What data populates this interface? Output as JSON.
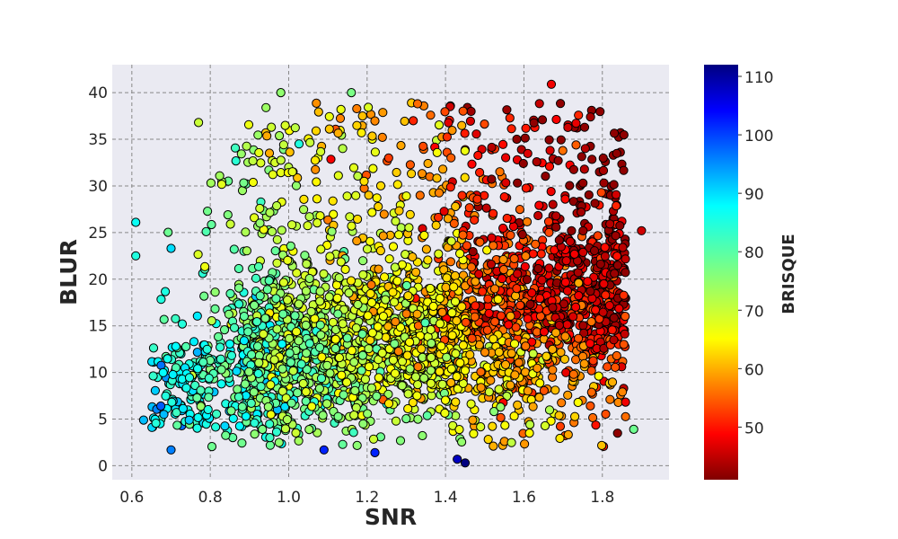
{
  "chart_data": {
    "type": "scatter",
    "title": "",
    "xlabel": "SNR",
    "ylabel": "BLUR",
    "xlim": [
      0.55,
      1.97
    ],
    "ylim": [
      -1.5,
      43
    ],
    "xticks": [
      0.6,
      0.8,
      1.0,
      1.2,
      1.4,
      1.6,
      1.8
    ],
    "xtick_labels": [
      "0.6",
      "0.8",
      "1.0",
      "1.2",
      "1.4",
      "1.6",
      "1.8"
    ],
    "yticks": [
      0,
      5,
      10,
      15,
      20,
      25,
      30,
      35,
      40
    ],
    "ytick_labels": [
      "0",
      "5",
      "10",
      "15",
      "20",
      "25",
      "30",
      "35",
      "40"
    ],
    "grid": true,
    "colormap": "jet_r",
    "colorbar": {
      "label": "BRISQUE",
      "min": 41,
      "max": 112,
      "ticks": [
        50,
        60,
        70,
        80,
        90,
        100,
        110
      ],
      "tick_labels": [
        "50",
        "60",
        "70",
        "80",
        "90",
        "100",
        "110"
      ]
    },
    "point_count": 3200,
    "marker_edge_color": "#000000",
    "sample_points": [
      {
        "x": 0.61,
        "y": 26.1,
        "c": 87
      },
      {
        "x": 0.61,
        "y": 22.5,
        "c": 85
      },
      {
        "x": 0.7,
        "y": 23.3,
        "c": 90
      },
      {
        "x": 0.77,
        "y": 36.8,
        "c": 70
      },
      {
        "x": 0.98,
        "y": 40.0,
        "c": 75
      },
      {
        "x": 1.16,
        "y": 40.0,
        "c": 77
      },
      {
        "x": 1.67,
        "y": 40.9,
        "c": 48
      },
      {
        "x": 1.9,
        "y": 25.2,
        "c": 46
      },
      {
        "x": 1.45,
        "y": 0.3,
        "c": 112
      },
      {
        "x": 1.43,
        "y": 0.7,
        "c": 108
      },
      {
        "x": 1.22,
        "y": 1.4,
        "c": 102
      },
      {
        "x": 1.09,
        "y": 1.7,
        "c": 102
      },
      {
        "x": 0.7,
        "y": 1.7,
        "c": 96
      },
      {
        "x": 1.88,
        "y": 3.9,
        "c": 78
      },
      {
        "x": 0.63,
        "y": 4.9,
        "c": 92
      }
    ]
  }
}
